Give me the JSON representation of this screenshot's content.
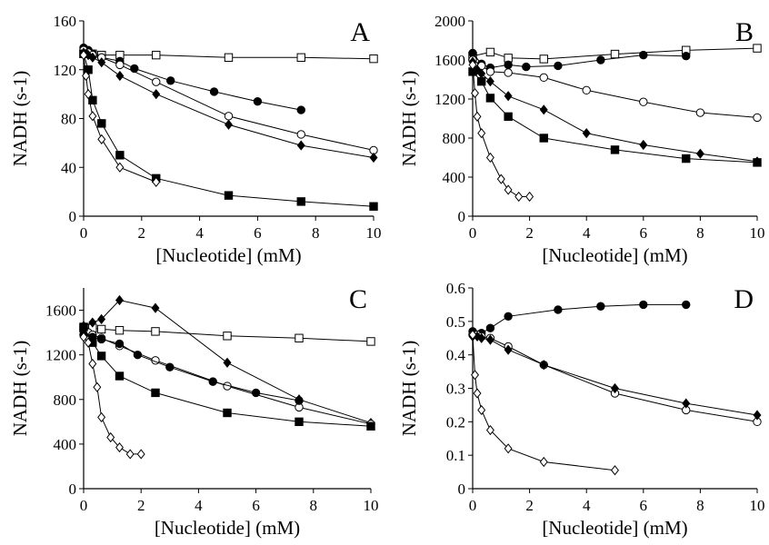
{
  "figure": {
    "panels": [
      {
        "letter": "A",
        "xlabel": "[Nucleotide] (mM)",
        "ylabel": "NADH (s-1)",
        "xticks": [
          "0",
          "2",
          "4",
          "6",
          "8",
          "10"
        ],
        "yticks": [
          "0",
          "40",
          "80",
          "120",
          "160"
        ]
      },
      {
        "letter": "B",
        "xlabel": "[Nucleotide] (mM)",
        "ylabel": "NADH (s-1)",
        "xticks": [
          "0",
          "2",
          "4",
          "6",
          "8",
          "10"
        ],
        "yticks": [
          "0",
          "400",
          "800",
          "1200",
          "1600",
          "2000"
        ]
      },
      {
        "letter": "C",
        "xlabel": "[Nucleotide] (mM)",
        "ylabel": "NADH (s-1)",
        "xticks": [
          "0",
          "2",
          "4",
          "6",
          "8",
          "10"
        ],
        "yticks": [
          "0",
          "400",
          "800",
          "1200",
          "1600"
        ]
      },
      {
        "letter": "D",
        "xlabel": "[Nucleotide] (mM)",
        "ylabel": "NADH (s-1)",
        "xticks": [
          "0",
          "2",
          "4",
          "6",
          "8",
          "10"
        ],
        "yticks": [
          "0",
          "0.1",
          "0.2",
          "0.3",
          "0.4",
          "0.5",
          "0.6"
        ]
      }
    ]
  },
  "chart_data": [
    {
      "type": "line",
      "panel": "A",
      "xlabel": "[Nucleotide] (mM)",
      "ylabel": "NADH (s-1)",
      "xlim": [
        0,
        10
      ],
      "ylim": [
        0,
        160
      ],
      "series": [
        {
          "marker": "open-square",
          "x": [
            0,
            0.16,
            0.31,
            0.62,
            1.25,
            2.5,
            5,
            7.5,
            10
          ],
          "y": [
            133,
            133,
            133,
            132,
            132,
            132,
            130,
            130,
            129
          ]
        },
        {
          "marker": "filled-circle",
          "x": [
            0,
            0.16,
            0.31,
            0.62,
            1.25,
            1.75,
            3,
            4.5,
            6,
            7.5
          ],
          "y": [
            138,
            136,
            133,
            130,
            127,
            121,
            111,
            102,
            94,
            87
          ]
        },
        {
          "marker": "open-circle",
          "x": [
            0,
            0.16,
            0.31,
            0.62,
            1.25,
            2.5,
            5,
            7.5,
            10
          ],
          "y": [
            136,
            134,
            132,
            130,
            124,
            110,
            82,
            67,
            54
          ]
        },
        {
          "marker": "filled-diamond",
          "x": [
            0,
            0.16,
            0.31,
            0.62,
            1.25,
            2.5,
            5,
            7.5,
            10
          ],
          "y": [
            134,
            132,
            130,
            126,
            115,
            100,
            75,
            58,
            48
          ]
        },
        {
          "marker": "filled-square",
          "x": [
            0,
            0.16,
            0.31,
            0.62,
            1.25,
            2.5,
            5,
            7.5,
            10
          ],
          "y": [
            133,
            120,
            95,
            76,
            50,
            31,
            17,
            12,
            8
          ]
        },
        {
          "marker": "open-diamond",
          "x": [
            0,
            0.08,
            0.16,
            0.31,
            0.62,
            1.25,
            2.5
          ],
          "y": [
            132,
            115,
            100,
            82,
            63,
            40,
            28
          ]
        }
      ]
    },
    {
      "type": "line",
      "panel": "B",
      "xlabel": "[Nucleotide] (mM)",
      "ylabel": "NADH (s-1)",
      "xlim": [
        0,
        10
      ],
      "ylim": [
        0,
        2000
      ],
      "series": [
        {
          "marker": "open-square",
          "x": [
            0,
            0.62,
            1.25,
            2.5,
            5,
            7.5,
            10
          ],
          "y": [
            1640,
            1680,
            1620,
            1610,
            1660,
            1700,
            1720
          ]
        },
        {
          "marker": "filled-circle",
          "x": [
            0,
            0.31,
            0.62,
            1.25,
            1.88,
            3,
            4.5,
            6,
            7.5
          ],
          "y": [
            1670,
            1560,
            1520,
            1550,
            1530,
            1540,
            1600,
            1650,
            1640
          ]
        },
        {
          "marker": "open-circle",
          "x": [
            0,
            0.31,
            0.62,
            1.25,
            2.5,
            4,
            6,
            8,
            10
          ],
          "y": [
            1600,
            1540,
            1480,
            1470,
            1420,
            1290,
            1170,
            1060,
            1010
          ]
        },
        {
          "marker": "filled-diamond",
          "x": [
            0,
            0.16,
            0.31,
            0.62,
            1.25,
            2.5,
            4,
            6,
            8,
            10
          ],
          "y": [
            1580,
            1500,
            1460,
            1380,
            1230,
            1090,
            850,
            730,
            640,
            560
          ]
        },
        {
          "marker": "filled-square",
          "x": [
            0,
            0.31,
            0.62,
            1.25,
            2.5,
            5,
            7.5,
            10
          ],
          "y": [
            1480,
            1380,
            1210,
            1020,
            800,
            680,
            590,
            550
          ]
        },
        {
          "marker": "open-diamond",
          "x": [
            0,
            0.08,
            0.16,
            0.31,
            0.62,
            1.0,
            1.25,
            1.62,
            2.0
          ],
          "y": [
            1550,
            1260,
            1020,
            850,
            600,
            380,
            270,
            200,
            200
          ]
        }
      ]
    },
    {
      "type": "line",
      "panel": "C",
      "xlabel": "[Nucleotide] (mM)",
      "ylabel": "NADH (s-1)",
      "xlim": [
        0,
        10
      ],
      "ylim": [
        0,
        1800
      ],
      "series": [
        {
          "marker": "open-square",
          "x": [
            0,
            0.31,
            0.62,
            1.25,
            2.5,
            5,
            7.5,
            10
          ],
          "y": [
            1440,
            1440,
            1430,
            1420,
            1410,
            1370,
            1350,
            1320
          ]
        },
        {
          "marker": "filled-diamond",
          "x": [
            0,
            0.31,
            0.62,
            1.25,
            2.5,
            5,
            7.5,
            10
          ],
          "y": [
            1460,
            1490,
            1520,
            1690,
            1620,
            1130,
            800,
            590
          ]
        },
        {
          "marker": "open-circle",
          "x": [
            0,
            0.16,
            0.31,
            0.62,
            1.25,
            2.5,
            5,
            7.5,
            10
          ],
          "y": [
            1430,
            1400,
            1380,
            1350,
            1280,
            1150,
            920,
            730,
            580
          ]
        },
        {
          "marker": "filled-circle",
          "x": [
            0,
            0.31,
            0.62,
            1.25,
            1.88,
            3,
            4.5,
            6,
            7.5
          ],
          "y": [
            1380,
            1360,
            1340,
            1300,
            1200,
            1090,
            960,
            860,
            790
          ]
        },
        {
          "marker": "filled-square",
          "x": [
            0,
            0.31,
            0.62,
            1.25,
            2.5,
            5,
            7.5,
            10
          ],
          "y": [
            1450,
            1310,
            1190,
            1010,
            860,
            680,
            600,
            560
          ]
        },
        {
          "marker": "open-diamond",
          "x": [
            0,
            0.16,
            0.31,
            0.47,
            0.62,
            0.94,
            1.25,
            1.62,
            2.0
          ],
          "y": [
            1360,
            1310,
            1120,
            910,
            640,
            460,
            370,
            310,
            310
          ]
        }
      ]
    },
    {
      "type": "line",
      "panel": "D",
      "xlabel": "[Nucleotide] (mM)",
      "ylabel": "NADH (s-1)",
      "xlim": [
        0,
        10
      ],
      "ylim": [
        0,
        0.6
      ],
      "series": [
        {
          "marker": "filled-circle",
          "x": [
            0,
            0.31,
            0.62,
            1.25,
            3,
            4.5,
            6,
            7.5
          ],
          "y": [
            0.47,
            0.465,
            0.48,
            0.515,
            0.535,
            0.545,
            0.55,
            0.55
          ]
        },
        {
          "marker": "open-circle",
          "x": [
            0,
            0.16,
            0.31,
            0.62,
            1.25,
            2.5,
            5,
            7.5,
            10
          ],
          "y": [
            0.46,
            0.46,
            0.455,
            0.45,
            0.425,
            0.37,
            0.285,
            0.235,
            0.2
          ]
        },
        {
          "marker": "filled-diamond",
          "x": [
            0,
            0.16,
            0.31,
            0.62,
            1.25,
            2.5,
            5,
            7.5,
            10
          ],
          "y": [
            0.455,
            0.455,
            0.45,
            0.445,
            0.415,
            0.37,
            0.3,
            0.255,
            0.22
          ]
        },
        {
          "marker": "open-diamond",
          "x": [
            0,
            0.08,
            0.16,
            0.31,
            0.62,
            1.25,
            2.5,
            5.0
          ],
          "y": [
            0.46,
            0.34,
            0.285,
            0.235,
            0.175,
            0.12,
            0.08,
            0.055
          ]
        }
      ]
    }
  ]
}
